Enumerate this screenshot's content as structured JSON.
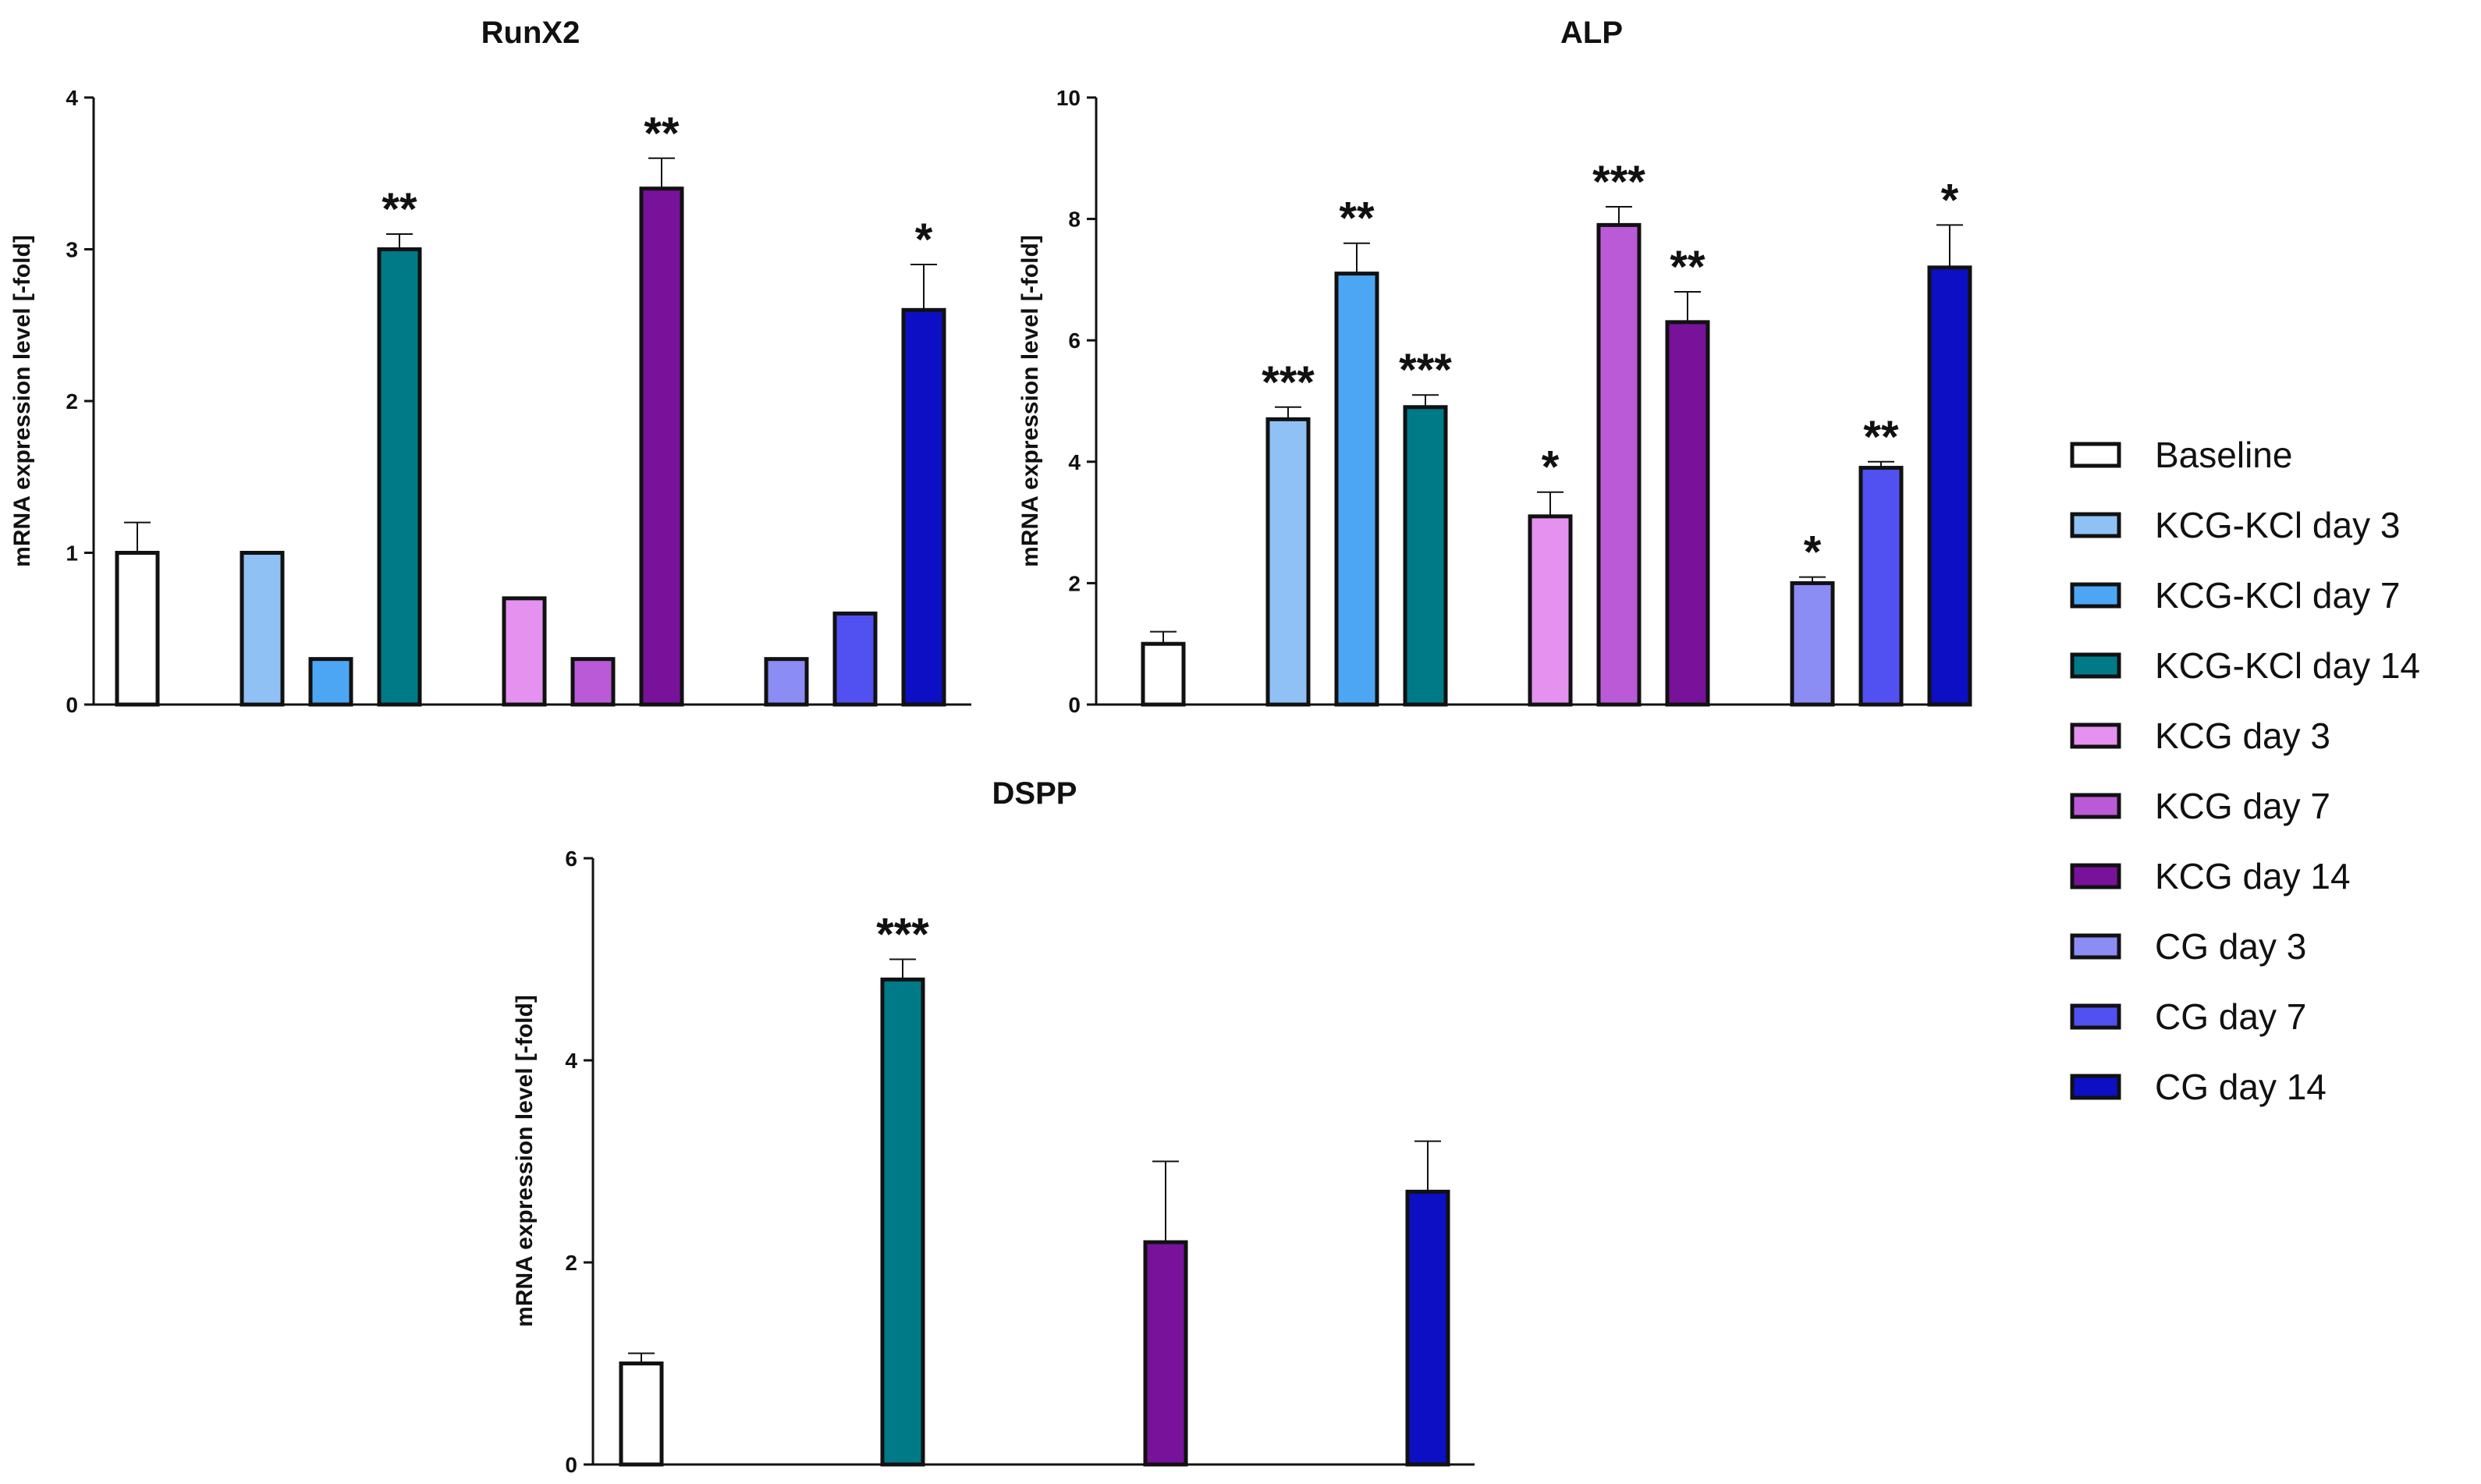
{
  "legend": [
    {
      "label": "Baseline",
      "color": "#ffffff"
    },
    {
      "label": "KCG-KCl day 3",
      "color": "#8fc1f5"
    },
    {
      "label": "KCG-KCl day 7",
      "color": "#4da6f4"
    },
    {
      "label": "KCG-KCl day 14",
      "color": "#007a87"
    },
    {
      "label": "KCG day 3",
      "color": "#e591f0"
    },
    {
      "label": "KCG day 7",
      "color": "#bb5ad6"
    },
    {
      "label": "KCG day 14",
      "color": "#78129a"
    },
    {
      "label": "CG day 3",
      "color": "#8c8cf5"
    },
    {
      "label": "CG day 7",
      "color": "#5151f2"
    },
    {
      "label": "CG day 14",
      "color": "#0c0fc4"
    }
  ],
  "chart_data": [
    {
      "type": "bar",
      "title": "RunX2",
      "ylabel": "mRNA expression level [-fold]",
      "ylim": [
        0,
        4
      ],
      "yticks": [
        "0",
        "1",
        "2",
        "3",
        "4"
      ],
      "series": [
        {
          "name": "Baseline",
          "value": 1.0,
          "error": 0.2,
          "sig": ""
        },
        {
          "name": "KCG-KCl day 3",
          "value": 1.0,
          "error": 0,
          "sig": ""
        },
        {
          "name": "KCG-KCl day 7",
          "value": 0.3,
          "error": 0,
          "sig": ""
        },
        {
          "name": "KCG-KCl day 14",
          "value": 3.0,
          "error": 0.1,
          "sig": "**"
        },
        {
          "name": "KCG day 3",
          "value": 0.7,
          "error": 0,
          "sig": ""
        },
        {
          "name": "KCG day 7",
          "value": 0.3,
          "error": 0,
          "sig": ""
        },
        {
          "name": "KCG day 14",
          "value": 3.4,
          "error": 0.2,
          "sig": "**"
        },
        {
          "name": "CG day 3",
          "value": 0.3,
          "error": 0,
          "sig": ""
        },
        {
          "name": "CG day 7",
          "value": 0.6,
          "error": 0,
          "sig": ""
        },
        {
          "name": "CG day 14",
          "value": 2.6,
          "error": 0.3,
          "sig": "*"
        }
      ]
    },
    {
      "type": "bar",
      "title": "ALP",
      "ylabel": "mRNA expression level [-fold]",
      "ylim": [
        0,
        10
      ],
      "yticks": [
        "0",
        "2",
        "4",
        "6",
        "8",
        "10"
      ],
      "series": [
        {
          "name": "Baseline",
          "value": 1.0,
          "error": 0.2,
          "sig": ""
        },
        {
          "name": "KCG-KCl day 3",
          "value": 4.7,
          "error": 0.2,
          "sig": "***"
        },
        {
          "name": "KCG-KCl day 7",
          "value": 7.1,
          "error": 0.5,
          "sig": "**"
        },
        {
          "name": "KCG-KCl day 14",
          "value": 4.9,
          "error": 0.2,
          "sig": "***"
        },
        {
          "name": "KCG day 3",
          "value": 3.1,
          "error": 0.4,
          "sig": "*"
        },
        {
          "name": "KCG day 7",
          "value": 7.9,
          "error": 0.3,
          "sig": "***"
        },
        {
          "name": "KCG day 14",
          "value": 6.3,
          "error": 0.5,
          "sig": "**"
        },
        {
          "name": "CG day 3",
          "value": 2.0,
          "error": 0.1,
          "sig": "*"
        },
        {
          "name": "CG day 7",
          "value": 3.9,
          "error": 0.1,
          "sig": "**"
        },
        {
          "name": "CG day 14",
          "value": 7.2,
          "error": 0.7,
          "sig": "*"
        }
      ]
    },
    {
      "type": "bar",
      "title": "DSPP",
      "ylabel": "mRNA expression level [-fold]",
      "ylim": [
        0,
        6
      ],
      "yticks": [
        "0",
        "2",
        "4",
        "6"
      ],
      "series": [
        {
          "name": "Baseline",
          "value": 1.0,
          "error": 0.1,
          "sig": ""
        },
        {
          "name": "KCG-KCl day 14",
          "value": 4.8,
          "error": 0.2,
          "sig": "***"
        },
        {
          "name": "KCG day 14",
          "value": 2.2,
          "error": 0.8,
          "sig": ""
        },
        {
          "name": "CG day 14",
          "value": 2.7,
          "error": 0.5,
          "sig": ""
        }
      ]
    }
  ]
}
